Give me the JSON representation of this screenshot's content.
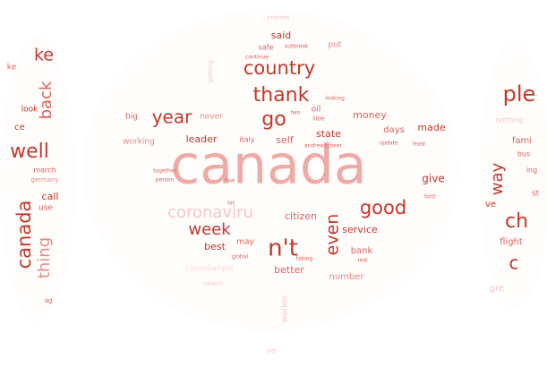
{
  "palette": [
    "#c0392b",
    "#cc4a42",
    "#d9645d",
    "#e38a84",
    "#eeaaa6",
    "#f4c7c4",
    "#f8dcda"
  ],
  "words": [
    {
      "text": "canada",
      "color": "#eeaaa6"
    },
    {
      "text": "country",
      "color": "#c0392b"
    },
    {
      "text": "thank",
      "color": "#c0392b"
    },
    {
      "text": "year",
      "color": "#c0392b"
    },
    {
      "text": "go",
      "color": "#c0392b"
    },
    {
      "text": "good",
      "color": "#c0392b"
    },
    {
      "text": "n't",
      "color": "#c0392b"
    },
    {
      "text": "week",
      "color": "#c0392b"
    },
    {
      "text": "even",
      "color": "#c0392b"
    },
    {
      "text": "coronaviru",
      "color": "#f4c7c4"
    },
    {
      "text": "well",
      "color": "#c0392b"
    },
    {
      "text": "back",
      "color": "#d9645d"
    },
    {
      "text": "thing",
      "color": "#e38a84"
    },
    {
      "text": "canada",
      "color": "#c0392b"
    },
    {
      "text": "ke",
      "color": "#c0392b"
    },
    {
      "text": "way",
      "color": "#c0392b"
    },
    {
      "text": "ple",
      "color": "#c0392b"
    },
    {
      "text": "ch",
      "color": "#c0392b"
    },
    {
      "text": "c",
      "color": "#c0392b"
    },
    {
      "text": "said",
      "color": "#c0392b"
    },
    {
      "text": "safe",
      "color": "#d9645d"
    },
    {
      "text": "leader",
      "color": "#c0392b"
    },
    {
      "text": "italy",
      "color": "#d9645d"
    },
    {
      "text": "self",
      "color": "#d9645d"
    },
    {
      "text": "state",
      "color": "#c0392b"
    },
    {
      "text": "money",
      "color": "#d9645d"
    },
    {
      "text": "made",
      "color": "#c0392b"
    },
    {
      "text": "days",
      "color": "#d9645d"
    },
    {
      "text": "give",
      "color": "#c0392b"
    },
    {
      "text": "citizen",
      "color": "#d9645d"
    },
    {
      "text": "service",
      "color": "#c0392b"
    },
    {
      "text": "bank",
      "color": "#d9645d"
    },
    {
      "text": "better",
      "color": "#d9645d"
    },
    {
      "text": "number",
      "color": "#e38a84"
    },
    {
      "text": "best",
      "color": "#c0392b"
    },
    {
      "text": "may",
      "color": "#d9645d"
    },
    {
      "text": "call",
      "color": "#c0392b"
    },
    {
      "text": "use",
      "color": "#d9645d"
    },
    {
      "text": "never",
      "color": "#e38a84"
    },
    {
      "text": "big",
      "color": "#d9645d"
    },
    {
      "text": "working",
      "color": "#e38a84"
    },
    {
      "text": "oil",
      "color": "#d9645d"
    },
    {
      "text": "put",
      "color": "#e38a84"
    },
    {
      "text": "worker",
      "color": "#f4c7c4"
    },
    {
      "text": "yet",
      "color": "#f4c7c4"
    },
    {
      "text": "look",
      "color": "#c0392b"
    },
    {
      "text": "march",
      "color": "#d9645d"
    },
    {
      "text": "germany",
      "color": "#e38a84"
    },
    {
      "text": "ce",
      "color": "#c0392b"
    },
    {
      "text": "fami",
      "color": "#d9645d"
    },
    {
      "text": "bus",
      "color": "#d9645d"
    },
    {
      "text": "flight",
      "color": "#d9645d"
    },
    {
      "text": "nothing",
      "color": "#f4c7c4"
    },
    {
      "text": "gre",
      "color": "#f4c7c4"
    },
    {
      "text": "st",
      "color": "#d9645d"
    },
    {
      "text": "getting",
      "color": "#f4c7c4"
    },
    {
      "text": "problem",
      "color": "#f4c7c4"
    },
    {
      "text": "continue",
      "color": "#d9645d"
    },
    {
      "text": "outbreak",
      "color": "#d9645d"
    },
    {
      "text": "global",
      "color": "#d9645d"
    },
    {
      "text": "real",
      "color": "#d9645d"
    },
    {
      "text": "taking",
      "color": "#d9645d"
    },
    {
      "text": "person",
      "color": "#d9645d"
    },
    {
      "text": "together",
      "color": "#d9645d"
    },
    {
      "text": "update",
      "color": "#d9645d"
    },
    {
      "text": "least",
      "color": "#d9645d"
    },
    {
      "text": "andrewscheer",
      "color": "#d9645d"
    },
    {
      "text": "two",
      "color": "#d9645d"
    },
    {
      "text": "little",
      "color": "#d9645d"
    },
    {
      "text": "looking",
      "color": "#d9645d"
    },
    {
      "text": "ford",
      "color": "#d9645d"
    },
    {
      "text": "canadianpol",
      "color": "#f8dcda"
    },
    {
      "text": "law",
      "color": "#d9645d"
    },
    {
      "text": "lot",
      "color": "#d9645d"
    },
    {
      "text": "cdnpoli",
      "color": "#f4c7c4"
    },
    {
      "text": "ve",
      "color": "#c0392b"
    },
    {
      "text": "ing",
      "color": "#d9645d"
    },
    {
      "text": "ag",
      "color": "#d9645d"
    },
    {
      "text": "ke",
      "color": "#d9645d"
    }
  ]
}
